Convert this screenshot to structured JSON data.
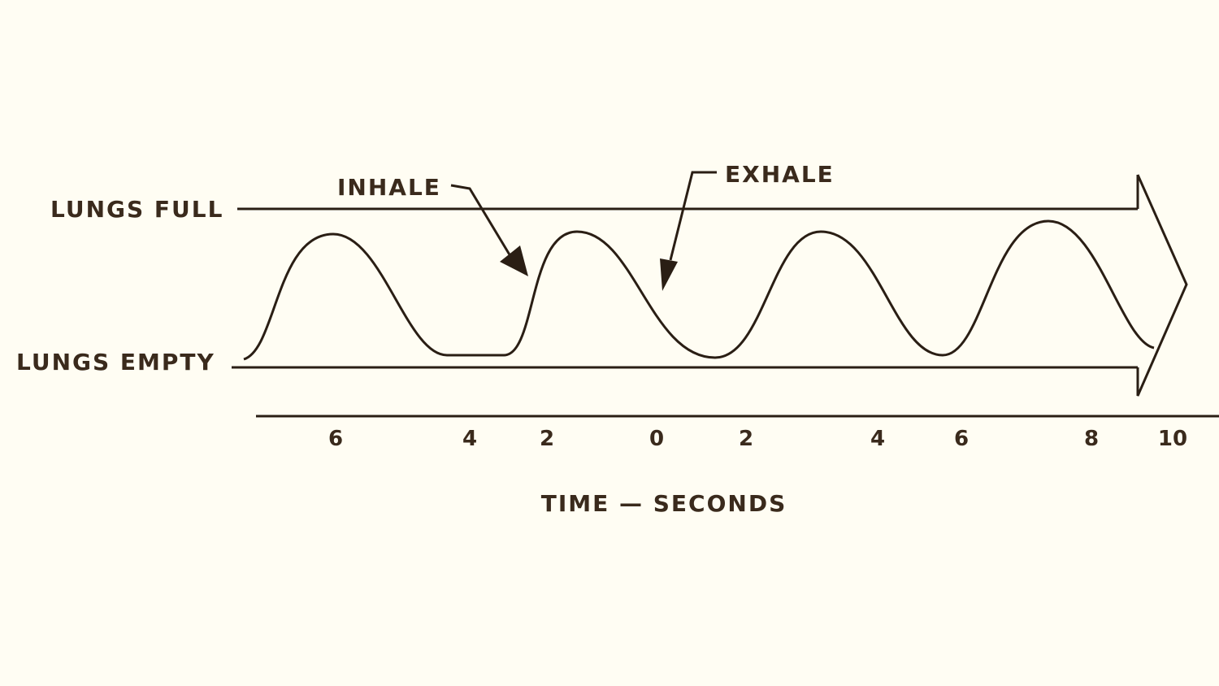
{
  "labels": {
    "lungs_full": "LUNGS FULL",
    "lungs_empty": "LUNGS EMPTY",
    "inhale": "INHALE",
    "exhale": "EXHALE"
  },
  "axis": {
    "ticks": [
      "6",
      "4",
      "2",
      "0",
      "2",
      "4",
      "6",
      "8",
      "10"
    ],
    "title": "TIME — SECONDS"
  }
}
